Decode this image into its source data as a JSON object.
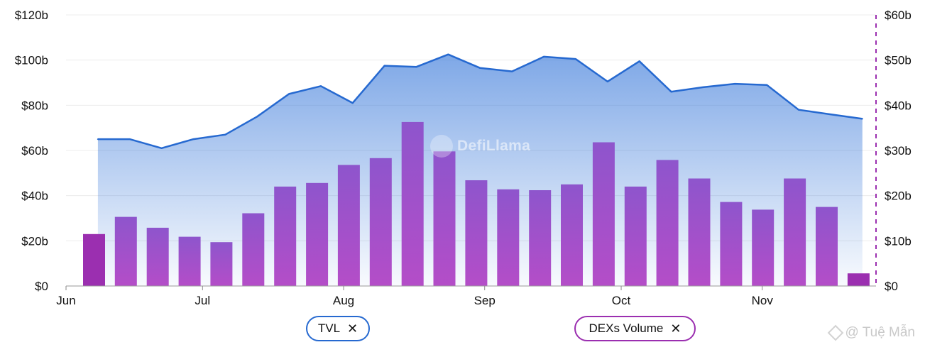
{
  "chart_data": {
    "type": "bar+area",
    "title": "",
    "x_ticks": [
      "Jun",
      "Jul",
      "Aug",
      "Sep",
      "Oct",
      "Nov"
    ],
    "y_left": {
      "ticks": [
        "$0",
        "$20b",
        "$40b",
        "$60b",
        "$80b",
        "$100b",
        "$120b"
      ],
      "range": [
        0,
        120
      ],
      "unit": "b"
    },
    "y_right": {
      "ticks": [
        "$0",
        "$10b",
        "$20b",
        "$30b",
        "$40b",
        "$50b",
        "$60b"
      ],
      "range": [
        0,
        60
      ],
      "unit": "b"
    },
    "grid": true,
    "series": [
      {
        "name": "TVL",
        "type": "area",
        "axis": "left",
        "color": "#2669d0",
        "x": [
          "2021-06-08",
          "2021-06-15",
          "2021-06-22",
          "2021-06-29",
          "2021-07-06",
          "2021-07-13",
          "2021-07-20",
          "2021-07-27",
          "2021-08-03",
          "2021-08-10",
          "2021-08-17",
          "2021-08-24",
          "2021-08-31",
          "2021-09-07",
          "2021-09-14",
          "2021-09-21",
          "2021-09-28",
          "2021-10-05",
          "2021-10-12",
          "2021-10-19",
          "2021-10-26",
          "2021-11-02",
          "2021-11-09",
          "2021-11-16",
          "2021-11-23"
        ],
        "values": [
          65,
          65,
          61,
          65,
          67,
          75,
          85,
          88.5,
          81,
          97.5,
          97,
          102.5,
          96.5,
          95,
          101.5,
          100.5,
          90.5,
          99.5,
          86,
          88,
          89.5,
          89,
          78,
          76,
          74
        ]
      },
      {
        "name": "DEXs Volume",
        "type": "bar",
        "axis": "right",
        "color": "#9b2fb0",
        "x": [
          "2021-06-07",
          "2021-06-14",
          "2021-06-21",
          "2021-06-28",
          "2021-07-05",
          "2021-07-12",
          "2021-07-19",
          "2021-07-26",
          "2021-08-02",
          "2021-08-09",
          "2021-08-16",
          "2021-08-23",
          "2021-08-30",
          "2021-09-06",
          "2021-09-13",
          "2021-09-20",
          "2021-09-27",
          "2021-10-04",
          "2021-10-11",
          "2021-10-18",
          "2021-10-25",
          "2021-11-01",
          "2021-11-08",
          "2021-11-15",
          "2021-11-22"
        ],
        "values": [
          11.5,
          15.3,
          12.9,
          10.9,
          9.7,
          16.1,
          22,
          22.8,
          26.8,
          28.3,
          36.3,
          29.8,
          23.4,
          21.4,
          21.2,
          22.5,
          31.8,
          22,
          27.9,
          23.8,
          18.6,
          16.9,
          23.8,
          17.5,
          2.8
        ]
      }
    ],
    "x_tick_dates": [
      "2021-06-01",
      "2021-07-01",
      "2021-08-01",
      "2021-09-01",
      "2021-10-01",
      "2021-11-01"
    ],
    "x_range": [
      "2021-06-01",
      "2021-11-26"
    ],
    "legend_placement": "bottom",
    "watermark": "DefiLlama"
  },
  "legend": {
    "tvl_label": "TVL",
    "dex_label": "DEXs Volume",
    "close_glyph": "✕"
  },
  "credit": {
    "text": "@ Tuệ Mẫn"
  }
}
